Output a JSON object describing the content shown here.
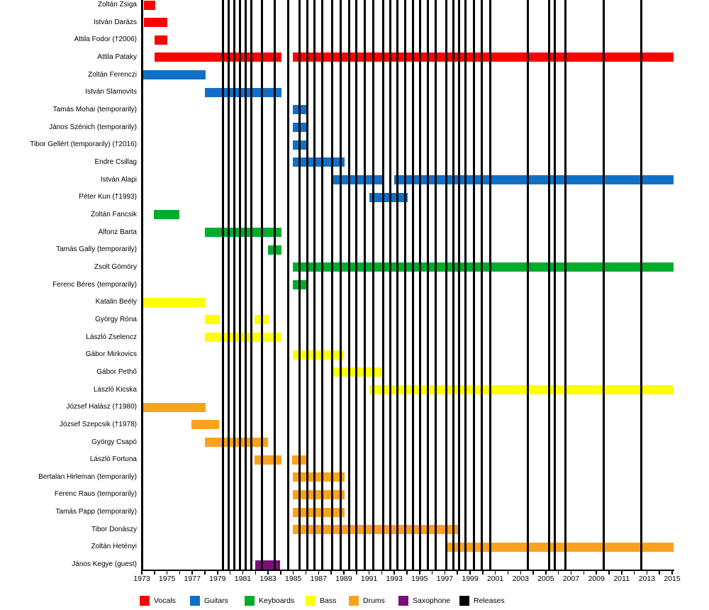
{
  "chart_data": {
    "type": "gantt-timeline",
    "title": "",
    "x_axis": {
      "min": 1973,
      "max": 2015,
      "tick_interval_years": 1,
      "label_interval_years": 2,
      "tick_labels": [
        "1973",
        "1975",
        "1977",
        "1979",
        "1981",
        "1983",
        "1985",
        "1987",
        "1989",
        "1991",
        "1993",
        "1995",
        "1997",
        "1999",
        "2001",
        "2003",
        "2005",
        "2007",
        "2009",
        "2011",
        "2013",
        "2015"
      ]
    },
    "legend": [
      {
        "label": "Vocals",
        "color": "#ff0000"
      },
      {
        "label": "Guitars",
        "color": "#1070c8"
      },
      {
        "label": "Keyboards",
        "color": "#00ad2b"
      },
      {
        "label": "Bass",
        "color": "#ffff00"
      },
      {
        "label": "Drums",
        "color": "#faa21e"
      },
      {
        "label": "Saxophone",
        "color": "#7b0e7b"
      },
      {
        "label": "Releases",
        "color": "#000000"
      }
    ],
    "members": [
      {
        "name": "Zoltán Zsiga",
        "role": "Vocals",
        "segments": [
          [
            1973.15,
            1974.05
          ]
        ]
      },
      {
        "name": "István Darázs",
        "role": "Vocals",
        "segments": [
          [
            1973.15,
            1975.05
          ]
        ]
      },
      {
        "name": "Attila Fodor (†2006)",
        "role": "Vocals",
        "segments": [
          [
            1974.0,
            1975.05
          ]
        ]
      },
      {
        "name": "Attila Pataky",
        "role": "Vocals",
        "segments": [
          [
            1974.0,
            1984.05
          ],
          [
            1984.95,
            2015.1
          ]
        ]
      },
      {
        "name": "Zoltán Ferenczi",
        "role": "Guitars",
        "segments": [
          [
            1973.05,
            1978.05
          ]
        ]
      },
      {
        "name": "István Slamovits",
        "role": "Guitars",
        "segments": [
          [
            1978.0,
            1984.05
          ]
        ]
      },
      {
        "name": "Tamás Mohai (temporarily)",
        "role": "Guitars",
        "segments": [
          [
            1984.95,
            1986.1
          ]
        ]
      },
      {
        "name": "János Szénich (temporarily)",
        "role": "Guitars",
        "segments": [
          [
            1984.95,
            1986.1
          ]
        ]
      },
      {
        "name": "Tibor Gellért (temporarily) (†2016)",
        "role": "Guitars",
        "segments": [
          [
            1984.95,
            1986.0
          ]
        ]
      },
      {
        "name": "Endre Csillag",
        "role": "Guitars",
        "segments": [
          [
            1984.95,
            1989.05
          ]
        ]
      },
      {
        "name": "István Alapi",
        "role": "Guitars",
        "segments": [
          [
            1988.0,
            1992.2
          ],
          [
            1993.0,
            2015.1
          ]
        ]
      },
      {
        "name": "Péter Kun (†1993)",
        "role": "Guitars",
        "segments": [
          [
            1991.0,
            1994.05
          ]
        ]
      },
      {
        "name": "Zoltán Fancsik",
        "role": "Keyboards",
        "segments": [
          [
            1973.95,
            1976.0
          ]
        ]
      },
      {
        "name": "Alfonz Barta",
        "role": "Keyboards",
        "segments": [
          [
            1978.0,
            1984.05
          ]
        ]
      },
      {
        "name": "Tamás Gally (temporarily)",
        "role": "Keyboards",
        "segments": [
          [
            1983.0,
            1984.05
          ]
        ]
      },
      {
        "name": "Zsolt Gömöry",
        "role": "Keyboards",
        "segments": [
          [
            1984.95,
            2015.1
          ]
        ]
      },
      {
        "name": "Ferenc Béres (temporarily)",
        "role": "Keyboards",
        "segments": [
          [
            1984.95,
            1986.0
          ]
        ]
      },
      {
        "name": "Katalin Beély",
        "role": "Bass",
        "segments": [
          [
            1973.05,
            1978.05
          ]
        ]
      },
      {
        "name": "György Róna",
        "role": "Bass",
        "segments": [
          [
            1978.0,
            1979.1
          ],
          [
            1981.9,
            1983.05
          ]
        ]
      },
      {
        "name": "László Zselencz",
        "role": "Bass",
        "segments": [
          [
            1978.0,
            1984.05
          ]
        ]
      },
      {
        "name": "Gábor Mirkovics",
        "role": "Bass",
        "segments": [
          [
            1984.95,
            1989.0
          ]
        ]
      },
      {
        "name": "Gábor Pethő",
        "role": "Bass",
        "segments": [
          [
            1988.0,
            1992.1
          ]
        ]
      },
      {
        "name": "László Kicska",
        "role": "Bass",
        "segments": [
          [
            1991.0,
            2015.1
          ]
        ]
      },
      {
        "name": "József Halász (†1980)",
        "role": "Drums",
        "segments": [
          [
            1973.05,
            1978.05
          ]
        ]
      },
      {
        "name": "József Szepcsik (†1978)",
        "role": "Drums",
        "segments": [
          [
            1976.95,
            1979.1
          ]
        ]
      },
      {
        "name": "György Csapó",
        "role": "Drums",
        "segments": [
          [
            1978.0,
            1983.0
          ]
        ]
      },
      {
        "name": "László Fortuna",
        "role": "Drums",
        "segments": [
          [
            1981.9,
            1984.05
          ],
          [
            1984.9,
            1986.1
          ]
        ]
      },
      {
        "name": "Bertalan Hirleman (temporarily)",
        "role": "Drums",
        "segments": [
          [
            1984.95,
            1989.05
          ]
        ]
      },
      {
        "name": "Ferenc Raus (temporarily)",
        "role": "Drums",
        "segments": [
          [
            1984.95,
            1989.05
          ]
        ]
      },
      {
        "name": "Tamás Papp (temporarily)",
        "role": "Drums",
        "segments": [
          [
            1984.95,
            1989.05
          ]
        ]
      },
      {
        "name": "Tibor Donászy",
        "role": "Drums",
        "segments": [
          [
            1984.95,
            1998.15
          ]
        ]
      },
      {
        "name": "Zoltán Hetényi",
        "role": "Drums",
        "segments": [
          [
            1997.05,
            2015.1
          ]
        ]
      },
      {
        "name": "János Kegye (guest)",
        "role": "Saxophone",
        "segments": [
          [
            1982.0,
            1983.95
          ]
        ]
      }
    ],
    "releases": [
      1979.45,
      1979.9,
      1980.3,
      1980.75,
      1981.25,
      1981.7,
      1982.5,
      1983.5,
      1984.6,
      1985.5,
      1986.1,
      1986.65,
      1987.3,
      1988.1,
      1988.75,
      1989.4,
      1990.0,
      1990.65,
      1991.35,
      1992.1,
      1992.7,
      1993.25,
      1993.85,
      1994.45,
      1995.05,
      1995.65,
      1996.3,
      1997.1,
      1997.65,
      1998.15,
      1998.65,
      1999.3,
      1999.9,
      2000.6,
      2003.55,
      2005.25,
      2005.7,
      2006.55,
      2009.6,
      2012.55
    ]
  }
}
